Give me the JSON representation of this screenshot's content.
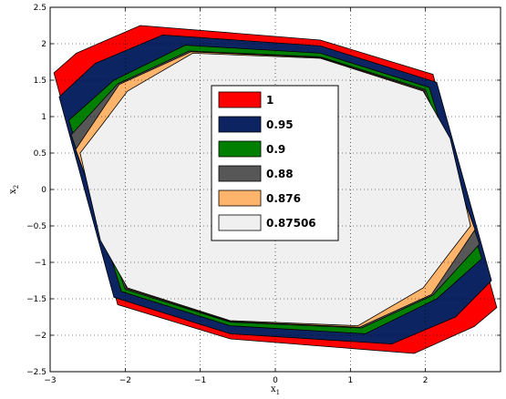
{
  "chart_data": {
    "type": "area",
    "title": "",
    "xlabel": "x",
    "xlabel_sub": "1",
    "ylabel": "x",
    "ylabel_sub": "2",
    "xlim": [
      -3,
      3
    ],
    "ylim": [
      -2.5,
      2.5
    ],
    "xticks": [
      -3,
      -2,
      -1,
      0,
      1,
      2
    ],
    "xtick_labels": [
      "−3",
      "−2",
      "−1",
      "0",
      "1",
      "2"
    ],
    "yticks": [
      -2.5,
      -2,
      -1.5,
      -1,
      -0.5,
      0,
      0.5,
      1,
      1.5,
      2,
      2.5
    ],
    "ytick_labels": [
      "−2.5",
      "−2",
      "−1.5",
      "−1",
      "−0.5",
      "0",
      "0.5",
      "1",
      "1.5",
      "2",
      "2.5"
    ],
    "grid": true,
    "legend_position": "center",
    "series": [
      {
        "name": "1",
        "color": "#ff0000",
        "points": [
          [
            -1.8,
            2.25
          ],
          [
            0.6,
            2.05
          ],
          [
            2.1,
            1.58
          ],
          [
            2.95,
            -1.62
          ],
          [
            2.65,
            -1.88
          ],
          [
            1.85,
            -2.25
          ],
          [
            -0.6,
            -2.05
          ],
          [
            -2.1,
            -1.58
          ],
          [
            -2.95,
            1.6
          ],
          [
            -2.65,
            1.87
          ]
        ]
      },
      {
        "name": "0.95",
        "color": "#0d2463",
        "points": [
          [
            -1.5,
            2.12
          ],
          [
            0.6,
            1.97
          ],
          [
            2.15,
            1.47
          ],
          [
            2.88,
            -1.25
          ],
          [
            2.4,
            -1.75
          ],
          [
            1.55,
            -2.12
          ],
          [
            -0.6,
            -1.98
          ],
          [
            -2.15,
            -1.48
          ],
          [
            -2.88,
            1.27
          ],
          [
            -2.4,
            1.73
          ]
        ]
      },
      {
        "name": "0.9",
        "color": "#007f00",
        "points": [
          [
            -1.2,
            1.98
          ],
          [
            0.6,
            1.87
          ],
          [
            2.05,
            1.4
          ],
          [
            2.75,
            -0.95
          ],
          [
            2.15,
            -1.5
          ],
          [
            1.2,
            -1.98
          ],
          [
            -0.6,
            -1.87
          ],
          [
            -2.05,
            -1.4
          ],
          [
            -2.75,
            0.95
          ],
          [
            -2.15,
            1.5
          ]
        ]
      },
      {
        "name": "0.88",
        "color": "#575757",
        "points": [
          [
            -1.15,
            1.9
          ],
          [
            0.6,
            1.82
          ],
          [
            2.0,
            1.37
          ],
          [
            2.72,
            -0.75
          ],
          [
            2.1,
            -1.45
          ],
          [
            1.15,
            -1.9
          ],
          [
            -0.6,
            -1.82
          ],
          [
            -2.0,
            -1.37
          ],
          [
            -2.72,
            0.75
          ],
          [
            -2.1,
            1.45
          ]
        ]
      },
      {
        "name": "0.876",
        "color": "#ffb46b",
        "points": [
          [
            -1.12,
            1.89
          ],
          [
            0.6,
            1.81
          ],
          [
            1.98,
            1.36
          ],
          [
            2.66,
            -0.55
          ],
          [
            2.08,
            -1.44
          ],
          [
            1.12,
            -1.89
          ],
          [
            -0.6,
            -1.81
          ],
          [
            -1.98,
            -1.36
          ],
          [
            -2.66,
            0.55
          ],
          [
            -2.08,
            1.44
          ]
        ]
      },
      {
        "name": "0.87506",
        "color": "#f0f0f0",
        "points": [
          [
            -1.1,
            1.87
          ],
          [
            0.6,
            1.8
          ],
          [
            1.97,
            1.35
          ],
          [
            2.33,
            0.7
          ],
          [
            2.6,
            -0.5
          ],
          [
            2.3,
            -0.9
          ],
          [
            1.97,
            -1.35
          ],
          [
            1.1,
            -1.87
          ],
          [
            -0.6,
            -1.8
          ],
          [
            -1.97,
            -1.35
          ],
          [
            -2.33,
            -0.7
          ],
          [
            -2.6,
            0.5
          ],
          [
            -2.3,
            0.9
          ],
          [
            -1.97,
            1.35
          ]
        ]
      }
    ]
  }
}
